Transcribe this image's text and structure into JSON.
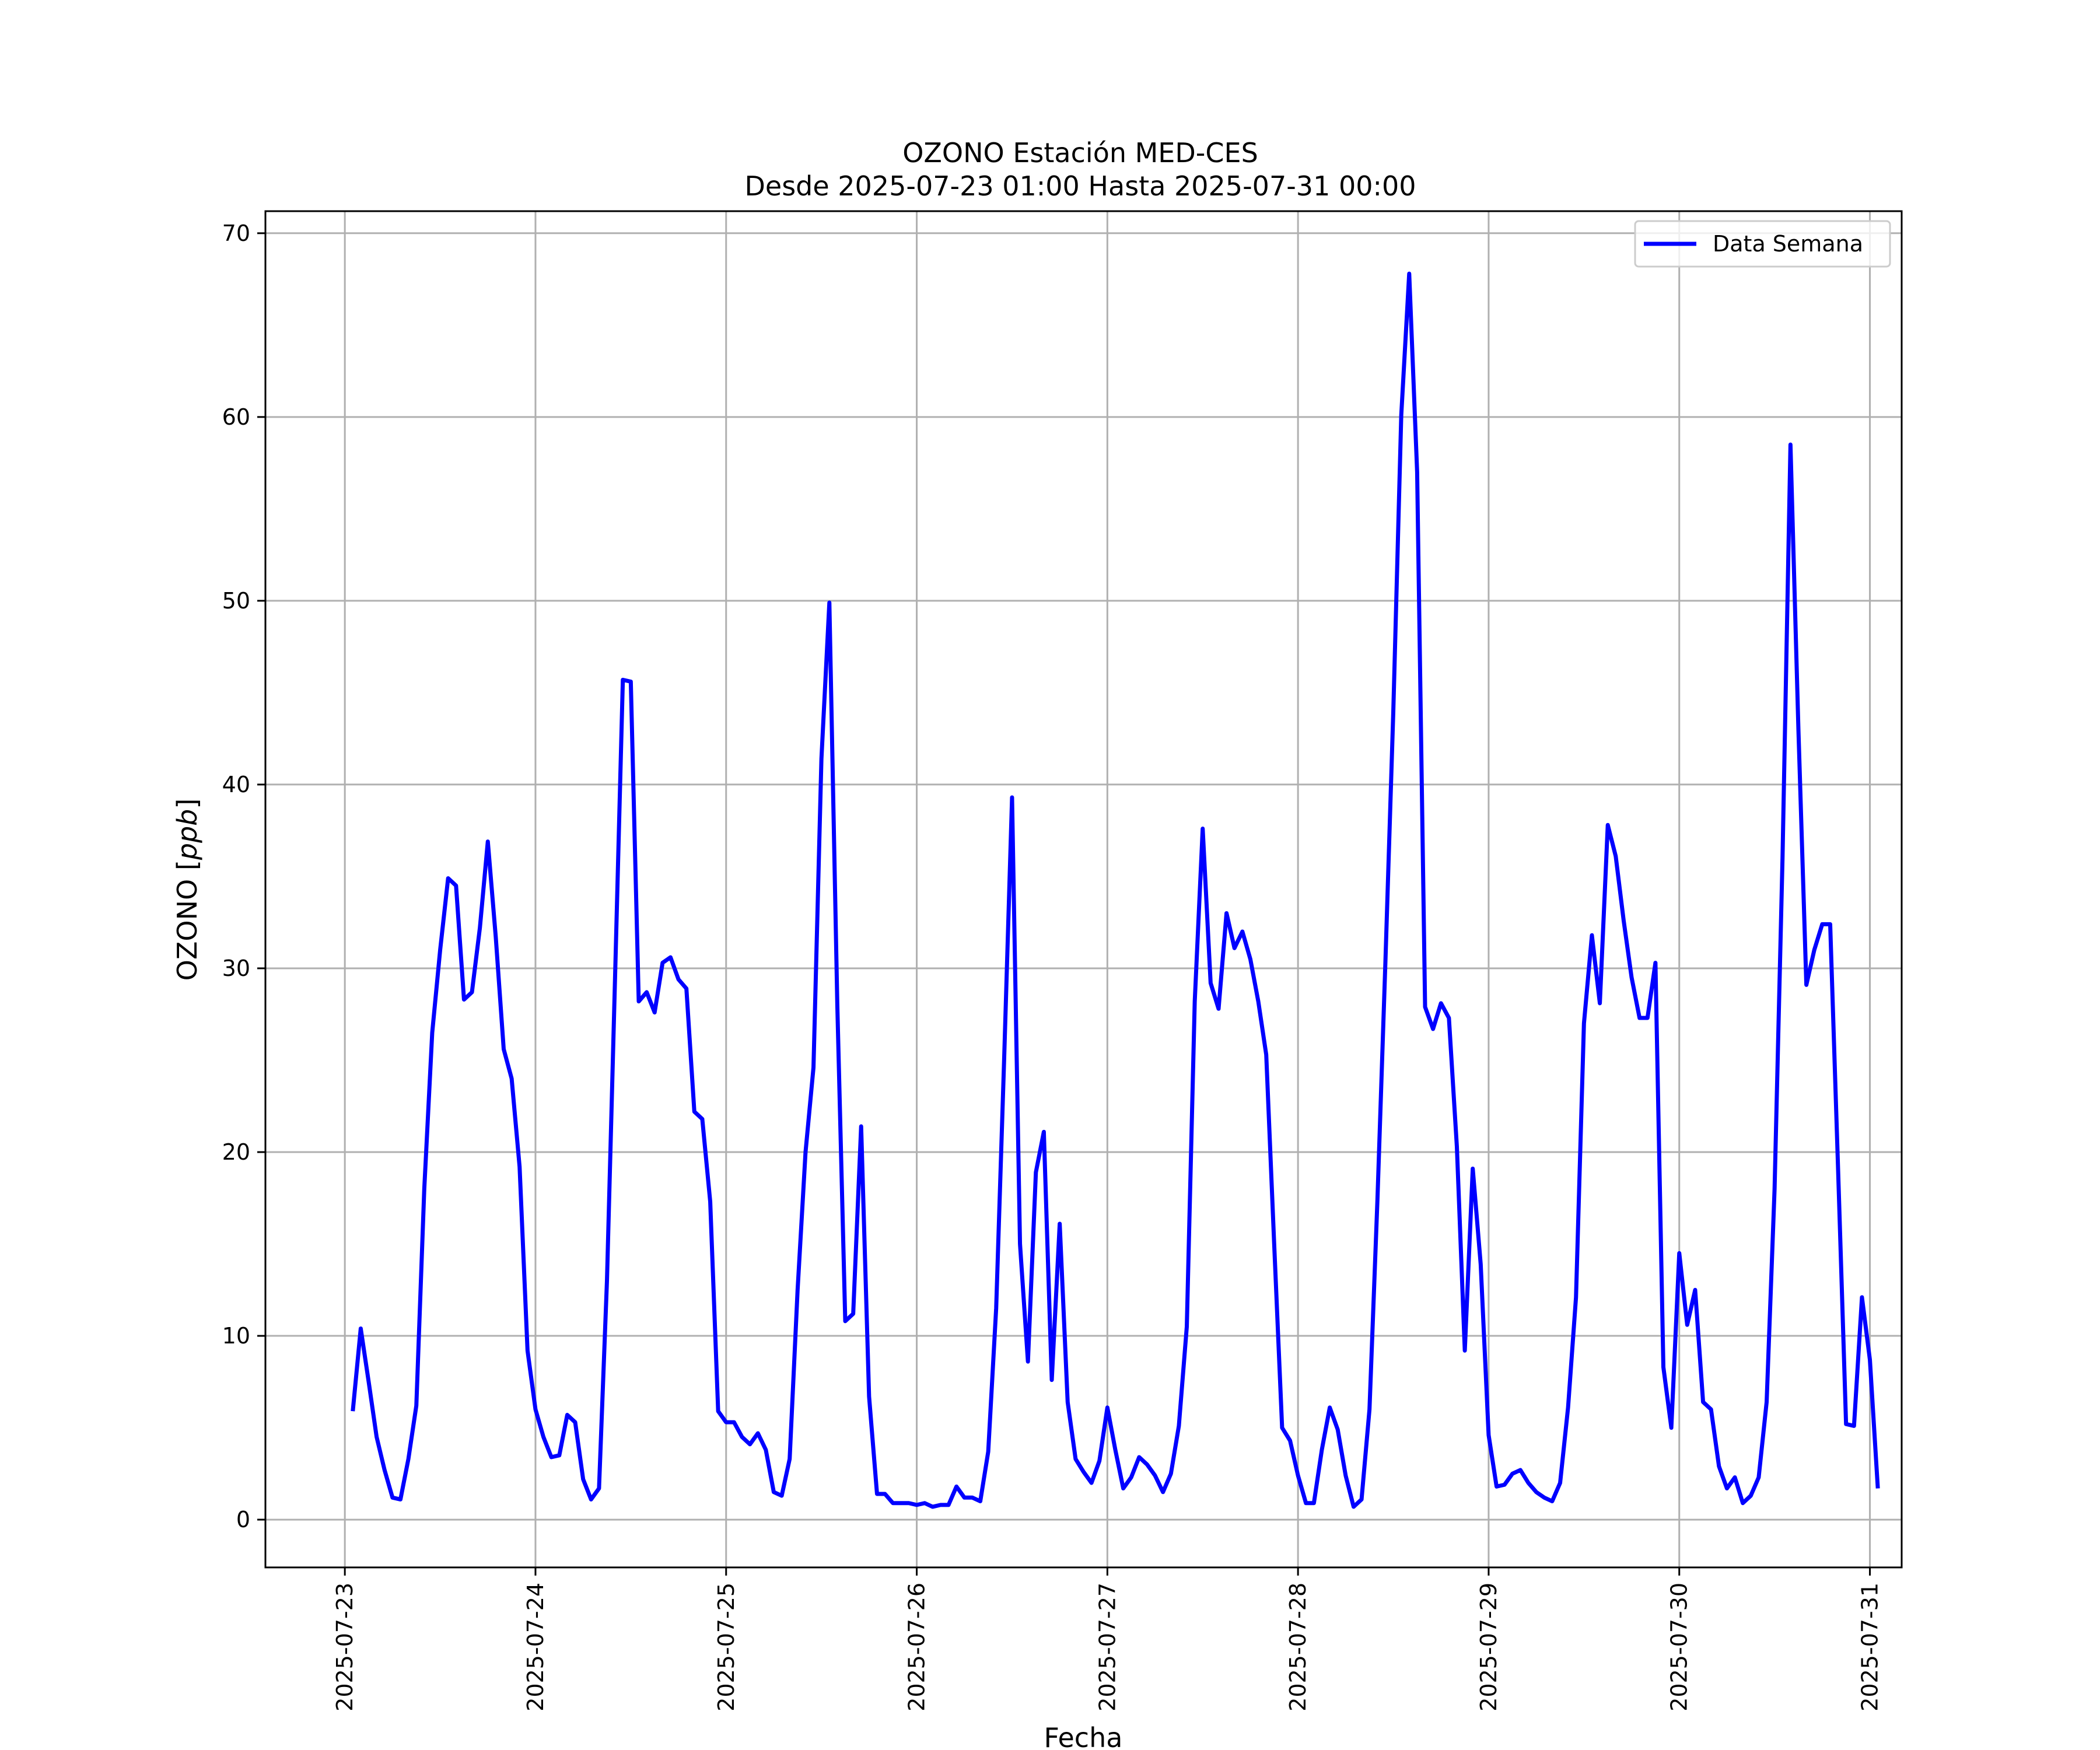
{
  "chart_data": {
    "type": "line",
    "title": "OZONO Estación MED-CES",
    "subtitle": "Desde 2025-07-23 01:00 Hasta 2025-07-31 00:00",
    "xlabel": "Fecha",
    "ylabel": "OZONO [ppb]",
    "ylabel_plain": "OZONO [",
    "ylabel_unit": "ppb",
    "ylabel_close": "]",
    "ylim": [
      -2.6,
      71.2
    ],
    "xlim": [
      "2025-07-22 14:00",
      "2025-07-31 04:00"
    ],
    "x_ticks": [
      "2025-07-23",
      "2025-07-24",
      "2025-07-25",
      "2025-07-26",
      "2025-07-27",
      "2025-07-28",
      "2025-07-29",
      "2025-07-30",
      "2025-07-31"
    ],
    "y_ticks": [
      0,
      10,
      20,
      30,
      40,
      50,
      60,
      70
    ],
    "grid": true,
    "legend_position": "top-right",
    "series": [
      {
        "name": "Data Semana",
        "color": "#0000ff",
        "x_start": "2025-07-23 01:00",
        "x_end": "2025-07-31 00:00",
        "x_step": "1 hour",
        "values": [
          5.9,
          10.4,
          7.5,
          4.5,
          2.7,
          1.2,
          1.1,
          3.3,
          6.2,
          18.0,
          26.5,
          31.0,
          34.9,
          34.5,
          28.3,
          28.7,
          32.2,
          36.9,
          31.7,
          25.6,
          24.0,
          19.2,
          9.2,
          6.0,
          4.5,
          3.4,
          3.5,
          5.7,
          5.3,
          2.2,
          1.1,
          1.7,
          13.0,
          29.2,
          45.7,
          45.6,
          28.2,
          28.7,
          27.6,
          30.3,
          30.6,
          29.4,
          28.9,
          22.2,
          21.8,
          17.3,
          5.9,
          5.3,
          5.3,
          4.5,
          4.1,
          4.7,
          3.8,
          1.5,
          1.3,
          3.3,
          12.5,
          20.0,
          24.6,
          41.4,
          49.9,
          28.0,
          10.8,
          11.2,
          21.4,
          6.7,
          1.4,
          1.4,
          0.9,
          0.9,
          0.9,
          0.8,
          0.9,
          0.7,
          0.8,
          0.8,
          1.8,
          1.2,
          1.2,
          1.0,
          3.7,
          11.5,
          25.0,
          39.3,
          15.0,
          8.6,
          18.9,
          21.1,
          7.6,
          16.1,
          6.4,
          3.3,
          2.6,
          2.0,
          3.2,
          6.1,
          3.8,
          1.7,
          2.3,
          3.4,
          3.0,
          2.4,
          1.5,
          2.5,
          5.1,
          10.5,
          28.2,
          37.6,
          29.2,
          27.8,
          33.0,
          31.1,
          32.0,
          30.5,
          28.2,
          25.3,
          15.0,
          5.0,
          4.3,
          2.4,
          0.9,
          0.9,
          3.8,
          6.1,
          4.9,
          2.4,
          0.7,
          1.1,
          6.0,
          17.4,
          30.3,
          44.0,
          60.1,
          67.8,
          57.0,
          27.9,
          26.7,
          28.1,
          27.3,
          20.3,
          9.2,
          19.1,
          13.9,
          4.6,
          1.8,
          1.9,
          2.5,
          2.7,
          2.0,
          1.5,
          1.2,
          1.0,
          2.0,
          6.1,
          12.1,
          27.0,
          31.8,
          28.1,
          37.8,
          36.1,
          32.6,
          29.5,
          27.3,
          27.3,
          30.3,
          8.3,
          5.0,
          14.5,
          10.6,
          12.5,
          6.4,
          6.0,
          2.9,
          1.7,
          2.3,
          0.9,
          1.3,
          2.3,
          6.4,
          18.0,
          36.0,
          58.5,
          43.0,
          29.1,
          31.0,
          32.4,
          32.4,
          19.0,
          5.2,
          5.1,
          12.1,
          8.7,
          1.7
        ]
      }
    ]
  }
}
